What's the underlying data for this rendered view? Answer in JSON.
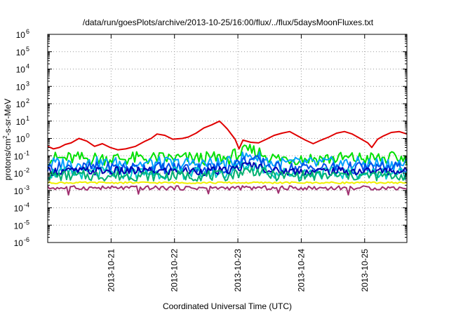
{
  "chart_data": {
    "type": "line",
    "title": "/data/run/goesPlots/archive/2013-10-25/16:00/flux/../flux/5daysMoonFluxes.txt",
    "xlabel": "Coordinated Universal Time (UTC)",
    "ylabel": {
      "pre": "protons/cm",
      "sup": "2",
      "post": "-s-sr-MeV"
    },
    "scale": "log",
    "grid": true,
    "ylim": [
      -6,
      6
    ],
    "xlim": [
      "2013-10-20 00:00",
      "2013-10-25 16:00"
    ],
    "x_ticks": [
      "2013-10-21",
      "2013-10-22",
      "2013-10-23",
      "2013-10-24",
      "2013-10-25"
    ],
    "y_ticks": [
      {
        "base": "10",
        "exp": "-6"
      },
      {
        "base": "10",
        "exp": "-5"
      },
      {
        "base": "10",
        "exp": "-4"
      },
      {
        "base": "10",
        "exp": "-3"
      },
      {
        "base": "10",
        "exp": "-2"
      },
      {
        "base": "10",
        "exp": "-1"
      },
      {
        "base": "10",
        "exp": "0"
      },
      {
        "base": "10",
        "exp": "1"
      },
      {
        "base": "10",
        "exp": "2"
      },
      {
        "base": "10",
        "exp": "3"
      },
      {
        "base": "10",
        "exp": "4"
      },
      {
        "base": "10",
        "exp": "5"
      },
      {
        "base": "10",
        "exp": "6"
      }
    ],
    "series": [
      {
        "color": "#e00000",
        "kind": "smooth",
        "values": [
          [
            0,
            0.35
          ],
          [
            0.15,
            0.25
          ],
          [
            0.3,
            0.3
          ],
          [
            0.45,
            0.45
          ],
          [
            0.6,
            0.55
          ],
          [
            0.8,
            1.0
          ],
          [
            1.0,
            0.7
          ],
          [
            1.2,
            0.35
          ],
          [
            1.4,
            0.5
          ],
          [
            1.6,
            0.3
          ],
          [
            1.8,
            0.22
          ],
          [
            2.0,
            0.25
          ],
          [
            2.25,
            0.35
          ],
          [
            2.5,
            0.7
          ],
          [
            2.65,
            1.0
          ],
          [
            2.8,
            1.8
          ],
          [
            3.0,
            1.5
          ],
          [
            3.2,
            0.9
          ],
          [
            3.45,
            1.0
          ],
          [
            3.6,
            1.2
          ],
          [
            3.8,
            2.0
          ],
          [
            4.0,
            4.0
          ],
          [
            4.2,
            6.0
          ],
          [
            4.4,
            10.0
          ],
          [
            4.5,
            6.0
          ],
          [
            4.6,
            3.5
          ],
          [
            4.8,
            0.9
          ],
          [
            4.9,
            0.25
          ],
          [
            5.0,
            0.8
          ],
          [
            5.2,
            0.6
          ],
          [
            5.4,
            0.55
          ],
          [
            5.6,
            0.9
          ],
          [
            5.8,
            1.5
          ],
          [
            6.0,
            2.0
          ],
          [
            6.2,
            2.5
          ],
          [
            6.4,
            1.4
          ],
          [
            6.6,
            0.8
          ],
          [
            6.8,
            0.5
          ],
          [
            7.0,
            0.8
          ],
          [
            7.2,
            1.2
          ],
          [
            7.4,
            2.0
          ],
          [
            7.6,
            2.5
          ],
          [
            7.8,
            1.8
          ],
          [
            8.0,
            1.0
          ],
          [
            8.2,
            0.55
          ],
          [
            8.3,
            0.3
          ],
          [
            8.45,
            0.9
          ],
          [
            8.6,
            1.4
          ],
          [
            8.8,
            2.2
          ],
          [
            9.0,
            2.5
          ],
          [
            9.2,
            1.8
          ]
        ]
      },
      {
        "color": "#00e000",
        "kind": "noisy",
        "base": 0.07,
        "amp": 0.4,
        "bump": [
          5.2,
          0.2
        ]
      },
      {
        "color": "#00a0ff",
        "kind": "noisy",
        "base": 0.035,
        "amp": 0.4,
        "bump": [
          5.2,
          0.1
        ]
      },
      {
        "color": "#0050e8",
        "kind": "noisy",
        "base": 0.02,
        "amp": 0.35,
        "bump": [
          5.2,
          0.06
        ]
      },
      {
        "color": "#00c8c8",
        "kind": "noisy",
        "base": 0.01,
        "amp": 0.35,
        "bump": [
          5.2,
          0.03
        ]
      },
      {
        "color": "#0000b0",
        "kind": "noisy",
        "base": 0.013,
        "amp": 0.25,
        "bump": [
          5.2,
          0.03
        ]
      },
      {
        "color": "#00b070",
        "kind": "noisy",
        "base": 0.007,
        "amp": 0.3,
        "bump": [
          5.2,
          0.015
        ]
      },
      {
        "color": "#f0f000",
        "kind": "flat",
        "base": 0.0028,
        "amp": 0.05
      },
      {
        "color": "#a03070",
        "kind": "flat",
        "base": 0.0014,
        "amp": 0.12
      }
    ]
  }
}
